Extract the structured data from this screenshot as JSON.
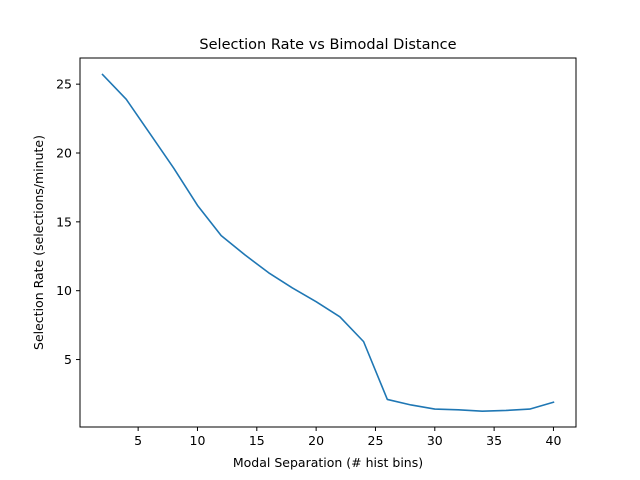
{
  "chart_data": {
    "type": "line",
    "title": "Selection Rate vs Bimodal Distance",
    "xlabel": "Modal Separation (# hist bins)",
    "ylabel": "Selection Rate (selections/minute)",
    "xlim": [
      0.1,
      41.9
    ],
    "ylim": [
      0.1,
      26.9
    ],
    "x_ticks": [
      5,
      10,
      15,
      20,
      25,
      30,
      35,
      40
    ],
    "y_ticks": [
      5,
      10,
      15,
      20,
      25
    ],
    "grid": false,
    "series": [
      {
        "color": "#1f77b4",
        "x": [
          2,
          4,
          6,
          8,
          10,
          12,
          14,
          16,
          18,
          20,
          22,
          24,
          26,
          28,
          30,
          32,
          34,
          36,
          38,
          40
        ],
        "y": [
          25.7,
          23.9,
          21.4,
          18.9,
          16.2,
          14.0,
          12.6,
          11.3,
          10.2,
          9.2,
          8.1,
          6.3,
          2.1,
          1.7,
          1.4,
          1.35,
          1.25,
          1.3,
          1.4,
          1.9
        ]
      }
    ]
  }
}
